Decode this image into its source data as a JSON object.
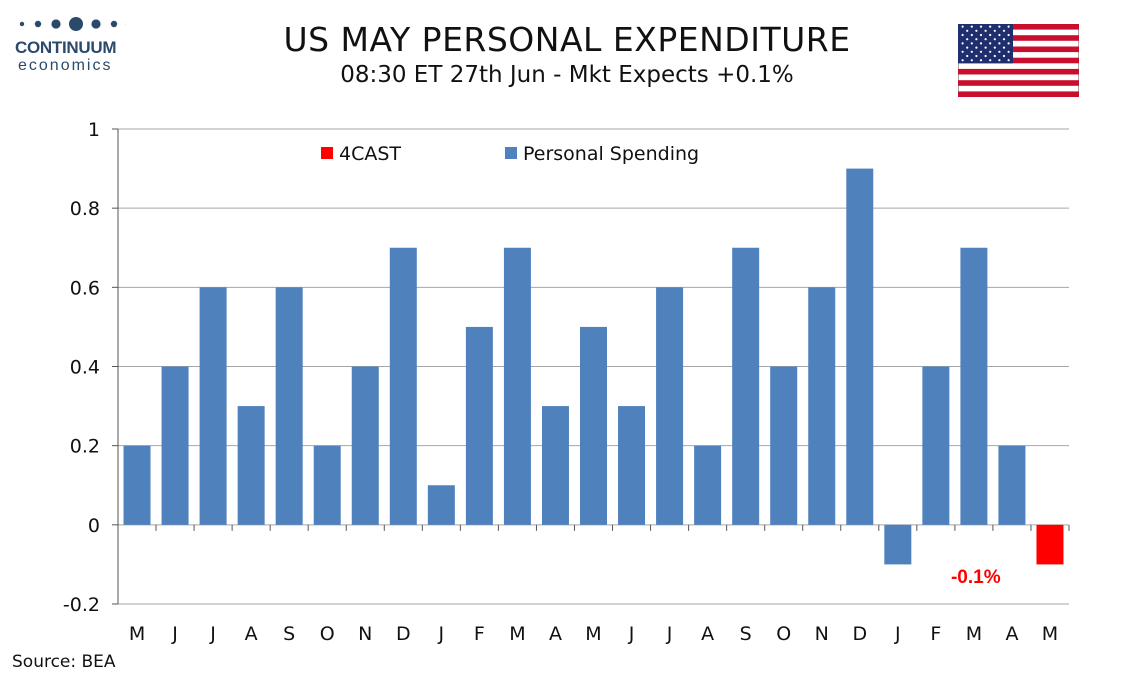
{
  "logo": {
    "name": "CONTINUUM",
    "sub": "economics"
  },
  "title": "US MAY PERSONAL EXPENDITURE",
  "subtitle": "08:30 ET 27th Jun - Mkt Expects +0.1%",
  "source": "Source: BEA",
  "colors": {
    "spending": "#4f81bd",
    "forecast": "#ff0000",
    "grid": "#a6a6a6"
  },
  "chart_data": {
    "type": "bar",
    "categories": [
      "M",
      "J",
      "J",
      "A",
      "S",
      "O",
      "N",
      "D",
      "J",
      "F",
      "M",
      "A",
      "M",
      "J",
      "J",
      "A",
      "S",
      "O",
      "N",
      "D",
      "J",
      "F",
      "M",
      "A",
      "M"
    ],
    "series": [
      {
        "name": "Personal Spending",
        "values": [
          0.2,
          0.4,
          0.6,
          0.3,
          0.6,
          0.2,
          0.4,
          0.7,
          0.1,
          0.5,
          0.7,
          0.3,
          0.5,
          0.3,
          0.6,
          0.2,
          0.7,
          0.4,
          0.6,
          0.9,
          -0.1,
          0.4,
          0.7,
          0.2,
          null
        ]
      },
      {
        "name": "4CAST",
        "values": [
          null,
          null,
          null,
          null,
          null,
          null,
          null,
          null,
          null,
          null,
          null,
          null,
          null,
          null,
          null,
          null,
          null,
          null,
          null,
          null,
          null,
          null,
          null,
          null,
          -0.1
        ]
      }
    ],
    "annotation": "-0.1%",
    "ylim": [
      -0.2,
      1
    ],
    "yticks": [
      "-0.2",
      "0",
      "0.2",
      "0.4",
      "0.6",
      "0.8",
      "1"
    ],
    "grid": true,
    "legend": "top"
  }
}
